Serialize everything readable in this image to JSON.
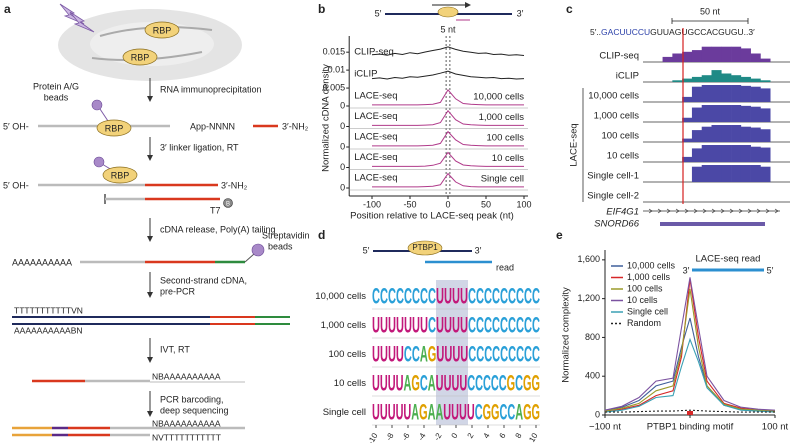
{
  "panels": {
    "a": {
      "label": "a",
      "rbp": "RBP",
      "beads": [
        "Protein A/G",
        "beads"
      ],
      "steps": [
        [
          "RNA immunoprecipitation"
        ],
        [
          "3′ linker ligation, RT"
        ],
        [
          "cDNA release, Poly(A) tailing"
        ],
        [
          "Second-strand cDNA,",
          "pre-PCR"
        ],
        [
          "IVT, RT"
        ],
        [
          "PCR barcoding,",
          "deep sequencing"
        ]
      ],
      "oh5": "5′ OH-",
      "adapter": "App-NNNN",
      "nh3": "3′-NH₂",
      "t7": "T7",
      "biotin": "B",
      "polya": "AAAAAAAAAA",
      "streptavidin": [
        "Streptavidin",
        "beads"
      ],
      "ds": [
        "TTTTTTTTTTTVN",
        "AAAAAAAAAABN"
      ],
      "ivt": "NBAAAAAAAAAA",
      "final": [
        "NBAAAAAAAAAA",
        "NVTTTTTTTTTTT"
      ]
    },
    "b": {
      "label": "b",
      "type": "line",
      "five": "5′",
      "three": "3′",
      "window": "5 nt",
      "ylabel": "Normalized cDNA density",
      "xlabel": "Position relative to LACE-seq peak (nt)",
      "xlim": [
        -130,
        100
      ],
      "xticks": [
        -100,
        -50,
        0,
        50,
        100
      ],
      "ylim": [
        0,
        0.017
      ],
      "yticks": [
        0.015,
        0.01,
        0.005,
        0
      ],
      "x": [
        -100,
        -90,
        -80,
        -70,
        -60,
        -50,
        -40,
        -30,
        -20,
        -10,
        0,
        10,
        20,
        30,
        40,
        50,
        60,
        70,
        80,
        90,
        100
      ],
      "tracks": [
        {
          "name": "CLIP-seq",
          "color": "#222222",
          "values": [
            0.002,
            0.0022,
            0.0019,
            0.0024,
            0.0021,
            0.0026,
            0.0023,
            0.0028,
            0.0032,
            0.0036,
            0.0042,
            0.0035,
            0.003,
            0.0027,
            0.0024,
            0.0025,
            0.0021,
            0.0022,
            0.0019,
            0.002,
            0.0018
          ]
        },
        {
          "name": "iCLIP",
          "color": "#222222",
          "values": [
            0.0015,
            0.0017,
            0.0014,
            0.0018,
            0.0016,
            0.002,
            0.0019,
            0.0022,
            0.0025,
            0.003,
            0.0036,
            0.0028,
            0.0024,
            0.002,
            0.0019,
            0.0017,
            0.0018,
            0.0015,
            0.0016,
            0.0014,
            0.0015
          ]
        },
        {
          "name": "LACE-seq",
          "sublabel": "10,000 cells",
          "color": "#b03a8a",
          "values": [
            0.0003,
            0.0003,
            0.0003,
            0.0003,
            0.0003,
            0.0003,
            0.0003,
            0.0004,
            0.0005,
            0.001,
            0.0045,
            0.002,
            0.0007,
            0.0005,
            0.0004,
            0.0003,
            0.0003,
            0.0003,
            0.0003,
            0.0003,
            0.0003
          ]
        },
        {
          "name": "LACE-seq",
          "sublabel": "1,000 cells",
          "ytick": 0,
          "color": "#b03a8a",
          "values": [
            0.0003,
            0.0003,
            0.0003,
            0.0003,
            0.0003,
            0.0003,
            0.0003,
            0.0004,
            0.0005,
            0.0011,
            0.0044,
            0.0019,
            0.0007,
            0.0005,
            0.0004,
            0.0003,
            0.0003,
            0.0003,
            0.0003,
            0.0003,
            0.0003
          ]
        },
        {
          "name": "LACE-seq",
          "sublabel": "100 cells",
          "ytick": 0,
          "color": "#b03a8a",
          "values": [
            0.0003,
            0.0003,
            0.0003,
            0.0003,
            0.0003,
            0.0003,
            0.0003,
            0.0004,
            0.0005,
            0.001,
            0.0043,
            0.002,
            0.0007,
            0.0005,
            0.0004,
            0.0003,
            0.0003,
            0.0003,
            0.0003,
            0.0003,
            0.0003
          ]
        },
        {
          "name": "LACE-seq",
          "sublabel": "10 cells",
          "ytick": 0,
          "color": "#b03a8a",
          "values": [
            0.0003,
            0.0003,
            0.0003,
            0.0003,
            0.0003,
            0.0003,
            0.0003,
            0.0004,
            0.0006,
            0.0012,
            0.0042,
            0.0018,
            0.0007,
            0.0005,
            0.0004,
            0.0003,
            0.0003,
            0.0003,
            0.0003,
            0.0003,
            0.0003
          ]
        },
        {
          "name": "LACE-seq",
          "sublabel": "Single cell",
          "ytick": 0,
          "color": "#b03a8a",
          "values": [
            0.0003,
            0.0003,
            0.0003,
            0.0003,
            0.0003,
            0.0003,
            0.0003,
            0.0004,
            0.0005,
            0.0009,
            0.004,
            0.0017,
            0.0006,
            0.0004,
            0.0003,
            0.0003,
            0.0003,
            0.0003,
            0.0003,
            0.0003,
            0.0003
          ]
        }
      ]
    },
    "c": {
      "label": "c",
      "scale": "50 nt",
      "sequence": [
        "5′..",
        "GACUUCCU",
        "GUUAGUGCCACGUGU..3′"
      ],
      "sequence_colors": [
        "#222222",
        "#2a3fa8",
        "#222222"
      ],
      "group": "LACE-seq",
      "genes": [
        "EIF4G1",
        "SNORD66"
      ],
      "tracks": [
        {
          "name": "CLIP-seq",
          "color": "#6b3b9c",
          "values": [
            0,
            0,
            0.3,
            0.5,
            0.6,
            0.7,
            0.9,
            0.9,
            0.9,
            0.9,
            0.8,
            0.5,
            0.2,
            0
          ]
        },
        {
          "name": "iCLIP",
          "color": "#1f8a86",
          "values": [
            0,
            0,
            0,
            0.1,
            0.2,
            0.3,
            0.4,
            0.7,
            0.5,
            0.4,
            0.3,
            0.2,
            0.1,
            0
          ]
        },
        {
          "name": "10,000 cells",
          "color": "#4b48a6",
          "values": [
            0,
            0,
            0,
            0,
            0.3,
            0.9,
            1,
            1,
            1,
            1,
            0.95,
            0.9,
            0.8,
            0
          ]
        },
        {
          "name": "1,000 cells",
          "color": "#4b48a6",
          "values": [
            0,
            0,
            0,
            0,
            0.25,
            0.85,
            1,
            1,
            1,
            1,
            0.95,
            0.9,
            0.8,
            0
          ]
        },
        {
          "name": "100 cells",
          "color": "#4b48a6",
          "values": [
            0,
            0,
            0,
            0,
            0.2,
            0.7,
            0.9,
            1,
            1,
            1,
            0.9,
            0.85,
            0.75,
            0
          ]
        },
        {
          "name": "10 cells",
          "color": "#4b48a6",
          "values": [
            0,
            0,
            0,
            0,
            0.3,
            0.8,
            1,
            1,
            1,
            1,
            1,
            0.9,
            0.85,
            0
          ]
        },
        {
          "name": "Single cell-1",
          "color": "#4b48a6",
          "values": [
            0,
            0,
            0,
            0,
            0,
            0.9,
            1,
            1,
            1,
            1,
            1,
            1,
            0.9,
            0
          ]
        },
        {
          "name": "Single cell-2",
          "color": "#4b48a6",
          "values": [
            0,
            0,
            0,
            0,
            0,
            0,
            0,
            0,
            0,
            0,
            0,
            0,
            0,
            0
          ]
        }
      ]
    },
    "d": {
      "label": "d",
      "five": "5′",
      "protein": "PTBP1",
      "three": "3′",
      "read": "read",
      "xticks": [
        -10,
        -8,
        -6,
        -4,
        -2,
        0,
        2,
        4,
        6,
        8,
        10
      ],
      "letter_colors": {
        "C": "#2aa0d8",
        "U": "#c2187a",
        "A": "#4caf50",
        "G": "#e0a000"
      },
      "rows": [
        {
          "label": "10,000 cells",
          "logo": "CCCCCCCCUUUUCCCCCCCCC"
        },
        {
          "label": "1,000 cells",
          "logo": "UUUUUUUCUUUUCCCCCCCCC"
        },
        {
          "label": "100 cells",
          "logo": "UUUUCCAGUUUUCCCCCCCCC"
        },
        {
          "label": "10 cells",
          "logo": "UUUUAGCAUUUUCCCCCGCGG"
        },
        {
          "label": "Single cell",
          "logo": "UUUUUAGAAUUUUCGGCCAGG"
        }
      ]
    },
    "e": {
      "label": "e",
      "type": "line",
      "ylabel": "Normalized complexity",
      "read": "LACE-seq read",
      "three": "3′",
      "five": "5′",
      "legend": "upper left",
      "xlim": [
        -100,
        100
      ],
      "ylim": [
        0,
        1650
      ],
      "xticks": [
        {
          "value": -100,
          "label": "−100 nt"
        },
        {
          "value": 0,
          "label": "PTBP1 binding motif"
        },
        {
          "value": 100,
          "label": "100 nt"
        }
      ],
      "yticks": [
        0,
        400,
        800,
        {
          "value": 1200,
          "label": "1,200"
        },
        {
          "value": 1600,
          "label": "1,600"
        }
      ],
      "x": [
        -100,
        -80,
        -60,
        -40,
        -20,
        -10,
        0,
        10,
        20,
        40,
        60,
        80,
        100
      ],
      "series": [
        {
          "name": "10,000 cells",
          "color": "#3f5f9a",
          "values": [
            50,
            80,
            150,
            300,
            350,
            700,
            1000,
            600,
            300,
            100,
            60,
            50,
            40
          ]
        },
        {
          "name": "1,000 cells",
          "color": "#d62728",
          "values": [
            40,
            60,
            100,
            200,
            250,
            600,
            1400,
            800,
            350,
            120,
            70,
            50,
            40
          ]
        },
        {
          "name": "100 cells",
          "color": "#9a9a2a",
          "values": [
            40,
            70,
            120,
            250,
            300,
            650,
            1300,
            700,
            300,
            110,
            60,
            50,
            40
          ]
        },
        {
          "name": "10 cells",
          "color": "#7b52a0",
          "values": [
            50,
            90,
            180,
            350,
            380,
            900,
            1420,
            900,
            400,
            150,
            80,
            60,
            50
          ]
        },
        {
          "name": "Single cell",
          "color": "#3aa0b4",
          "values": [
            30,
            50,
            90,
            180,
            200,
            500,
            780,
            550,
            280,
            100,
            50,
            40,
            30
          ]
        },
        {
          "name": "Random",
          "color": "#222222",
          "style": "dashed",
          "values": [
            30,
            30,
            35,
            40,
            40,
            45,
            50,
            45,
            40,
            35,
            30,
            30,
            30
          ]
        }
      ]
    }
  }
}
